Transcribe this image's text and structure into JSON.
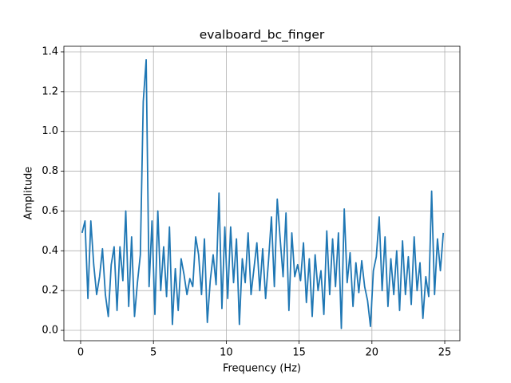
{
  "chart_data": {
    "type": "line",
    "title": "evalboard_bc_finger",
    "x_label": "Frequency (Hz)",
    "y_label": "Amplitude",
    "x": [
      0.1,
      0.3,
      0.5,
      0.7,
      0.9,
      1.1,
      1.3,
      1.5,
      1.7,
      1.9,
      2.1,
      2.3,
      2.5,
      2.7,
      2.9,
      3.1,
      3.3,
      3.5,
      3.7,
      3.9,
      4.1,
      4.3,
      4.5,
      4.7,
      4.9,
      5.1,
      5.3,
      5.5,
      5.7,
      5.9,
      6.1,
      6.3,
      6.5,
      6.7,
      6.9,
      7.1,
      7.3,
      7.5,
      7.7,
      7.9,
      8.1,
      8.3,
      8.5,
      8.7,
      8.9,
      9.1,
      9.3,
      9.5,
      9.7,
      9.9,
      10.1,
      10.3,
      10.5,
      10.7,
      10.9,
      11.1,
      11.3,
      11.5,
      11.7,
      11.9,
      12.1,
      12.3,
      12.5,
      12.7,
      12.9,
      13.1,
      13.3,
      13.5,
      13.7,
      13.9,
      14.1,
      14.3,
      14.5,
      14.7,
      14.9,
      15.1,
      15.3,
      15.5,
      15.7,
      15.9,
      16.1,
      16.3,
      16.5,
      16.7,
      16.9,
      17.1,
      17.3,
      17.5,
      17.7,
      17.9,
      18.1,
      18.3,
      18.5,
      18.7,
      18.9,
      19.1,
      19.3,
      19.5,
      19.7,
      19.9,
      20.1,
      20.3,
      20.5,
      20.7,
      20.9,
      21.1,
      21.3,
      21.5,
      21.7,
      21.9,
      22.1,
      22.3,
      22.5,
      22.7,
      22.9,
      23.1,
      23.3,
      23.5,
      23.7,
      23.9,
      24.1,
      24.3,
      24.5,
      24.7,
      24.9
    ],
    "series": [
      {
        "color": "#1f77b4",
        "values": [
          0.49,
          0.55,
          0.16,
          0.55,
          0.33,
          0.18,
          0.27,
          0.41,
          0.18,
          0.07,
          0.33,
          0.42,
          0.1,
          0.42,
          0.25,
          0.6,
          0.12,
          0.47,
          0.07,
          0.24,
          0.38,
          1.15,
          1.36,
          0.22,
          0.55,
          0.08,
          0.6,
          0.2,
          0.42,
          0.17,
          0.52,
          0.03,
          0.31,
          0.1,
          0.36,
          0.28,
          0.18,
          0.26,
          0.22,
          0.47,
          0.38,
          0.18,
          0.46,
          0.04,
          0.25,
          0.38,
          0.23,
          0.69,
          0.11,
          0.52,
          0.16,
          0.52,
          0.24,
          0.46,
          0.03,
          0.36,
          0.24,
          0.49,
          0.18,
          0.31,
          0.44,
          0.2,
          0.41,
          0.16,
          0.35,
          0.57,
          0.22,
          0.66,
          0.46,
          0.27,
          0.59,
          0.1,
          0.49,
          0.27,
          0.33,
          0.25,
          0.44,
          0.14,
          0.36,
          0.07,
          0.38,
          0.2,
          0.3,
          0.08,
          0.5,
          0.18,
          0.46,
          0.22,
          0.49,
          0.01,
          0.61,
          0.24,
          0.39,
          0.12,
          0.34,
          0.19,
          0.35,
          0.22,
          0.15,
          0.02,
          0.3,
          0.37,
          0.57,
          0.2,
          0.47,
          0.12,
          0.36,
          0.18,
          0.4,
          0.1,
          0.45,
          0.18,
          0.37,
          0.13,
          0.47,
          0.2,
          0.34,
          0.06,
          0.27,
          0.17,
          0.7,
          0.18,
          0.46,
          0.3,
          0.49
        ]
      }
    ],
    "xlim": [
      -1.15,
      26.04
    ],
    "ylim": [
      -0.052,
      1.428
    ],
    "xticks": [
      0,
      5,
      10,
      15,
      20,
      25
    ],
    "yticks": [
      {
        "value": 0,
        "label": "0.0"
      },
      0.2,
      0.4,
      0.6,
      0.8,
      {
        "value": 1,
        "label": "1.0"
      },
      1.2,
      1.4
    ],
    "grid": true
  }
}
